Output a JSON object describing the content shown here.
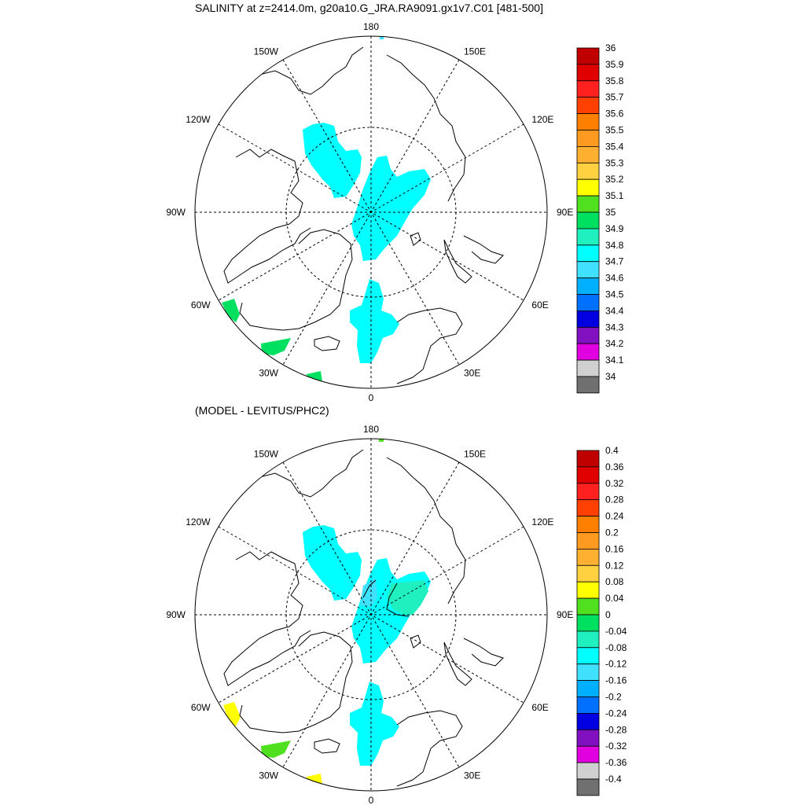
{
  "figure": {
    "title": "SALINITY at z=2414.0m, g20a10.G_JRA.RA9091.gx1v7.C01 [481-500]",
    "panels": [
      {
        "id": "top",
        "subtitle": "",
        "colorbar": {
          "labels": [
            "36",
            "35.9",
            "35.8",
            "35.7",
            "35.6",
            "35.5",
            "35.4",
            "35.3",
            "35.2",
            "35.1",
            "35",
            "34.9",
            "34.8",
            "34.7",
            "34.6",
            "34.5",
            "34.4",
            "34.3",
            "34.2",
            "34.1",
            "34"
          ],
          "colors": [
            "#c00000",
            "#e00000",
            "#ff2020",
            "#ff4000",
            "#ff8000",
            "#ff9a20",
            "#ffb030",
            "#ffd040",
            "#ffff00",
            "#50e020",
            "#00e060",
            "#20f0c0",
            "#00ffff",
            "#40e0ff",
            "#00b0ff",
            "#0070ff",
            "#0000e0",
            "#8010c0",
            "#e000e0",
            "#d0d0d0",
            "#707070"
          ]
        }
      },
      {
        "id": "bottom",
        "subtitle": "(MODEL - LEVITUS/PHC2)",
        "colorbar": {
          "labels": [
            "0.4",
            "0.36",
            "0.32",
            "0.28",
            "0.24",
            "0.2",
            "0.16",
            "0.12",
            "0.08",
            "0.04",
            "0",
            "-0.04",
            "-0.08",
            "-0.12",
            "-0.16",
            "-0.2",
            "-0.24",
            "-0.28",
            "-0.32",
            "-0.36",
            "-0.4"
          ],
          "colors": [
            "#c00000",
            "#e00000",
            "#ff2020",
            "#ff4000",
            "#ff8000",
            "#ff9a20",
            "#ffb030",
            "#ffd040",
            "#ffff00",
            "#50e020",
            "#00e060",
            "#20f0c0",
            "#00ffff",
            "#40e0ff",
            "#00b0ff",
            "#0070ff",
            "#0000e0",
            "#8010c0",
            "#e000e0",
            "#d0d0d0",
            "#707070"
          ]
        }
      }
    ],
    "longitude_labels": [
      {
        "deg": 0,
        "text": "0"
      },
      {
        "deg": 30,
        "text": "30E"
      },
      {
        "deg": 60,
        "text": "60E"
      },
      {
        "deg": 90,
        "text": "90E"
      },
      {
        "deg": 120,
        "text": "120E"
      },
      {
        "deg": 150,
        "text": "150E"
      },
      {
        "deg": 180,
        "text": "180"
      },
      {
        "deg": 210,
        "text": "150W"
      },
      {
        "deg": 240,
        "text": "120W"
      },
      {
        "deg": 270,
        "text": "90W"
      },
      {
        "deg": 300,
        "text": "60W"
      },
      {
        "deg": 330,
        "text": "30W"
      }
    ],
    "fill_colors": {
      "ocean_top": "#00ffff",
      "ocean_bottom_main": "#00ffff",
      "bottom_lomonosov_patch": "#40e0ff",
      "bottom_makarov_patch": "#20f0c0",
      "top_southwest_patches": "#00e060",
      "bottom_southwest_patch_a": "#ffff00",
      "bottom_southwest_patch_b": "#50e020"
    }
  }
}
